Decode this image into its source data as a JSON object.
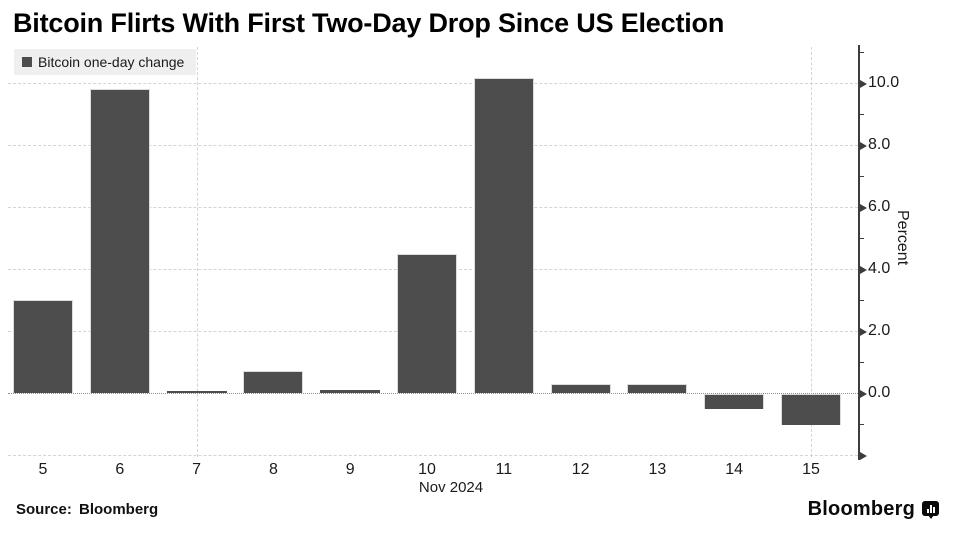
{
  "chart_data": {
    "type": "bar",
    "title": "Bitcoin Flirts With First Two-Day Drop Since US Election",
    "legend": "Bitcoin one-day change",
    "ylabel": "Percent",
    "x_axis_label": "Nov 2024",
    "categories": [
      "5",
      "6",
      "7",
      "8",
      "9",
      "10",
      "11",
      "12",
      "13",
      "14",
      "15"
    ],
    "values": [
      3.0,
      9.8,
      0.05,
      0.7,
      0.1,
      4.5,
      10.15,
      0.3,
      0.3,
      -0.5,
      -1.0
    ],
    "ylim": [
      -2.1,
      11.2
    ],
    "labeled_yticks": [
      0,
      2,
      4,
      6,
      8,
      10
    ],
    "major_yticks": [
      -2,
      0,
      2,
      4,
      6,
      8,
      10
    ],
    "minor_yticks": [
      -1,
      1,
      3,
      5,
      7,
      9,
      11
    ],
    "horizontal_gridlines": [
      -2,
      2,
      4,
      6,
      8,
      10
    ],
    "baseline_value": 0,
    "vertical_gridlines_at": [
      "7",
      "15"
    ],
    "legend_position": "top-left",
    "grid": true,
    "colors": {
      "bar": "#4d4d4d",
      "axis": "#3d3d3d",
      "gridline": "#d4d4d4",
      "baseline": "#8f8f8f",
      "legend_background": "#efefef"
    }
  },
  "footer": {
    "source": "Source: Bloomberg",
    "brand": "Bloomberg",
    "brand_icon": "bloomberg-terminal-icon"
  }
}
